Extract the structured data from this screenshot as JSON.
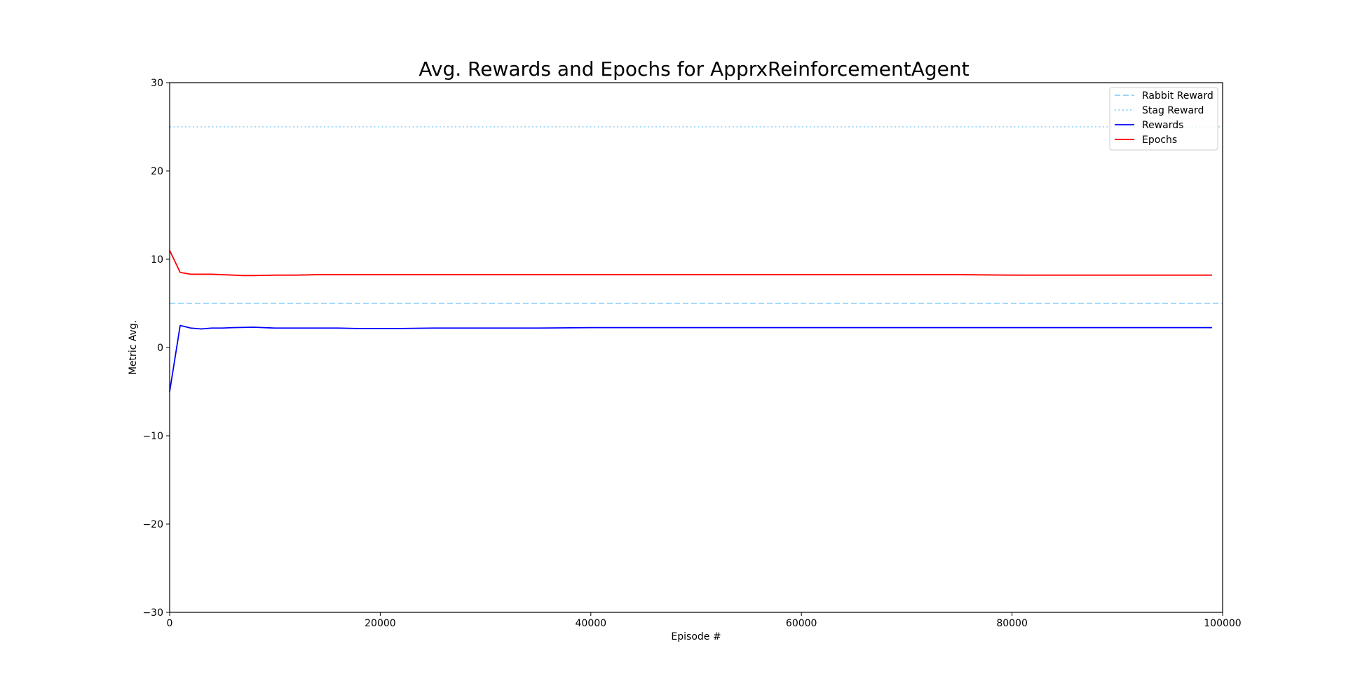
{
  "chart_data": {
    "type": "line",
    "title": "Avg. Rewards and Epochs for ApprxReinforcementAgent",
    "xlabel": "Episode #",
    "ylabel": "Metric Avg.",
    "xlim": [
      0,
      100000
    ],
    "ylim": [
      -30,
      30
    ],
    "xticks": [
      0,
      20000,
      40000,
      60000,
      80000,
      100000
    ],
    "xtick_labels": [
      "0",
      "20000",
      "40000",
      "60000",
      "80000",
      "100000"
    ],
    "yticks": [
      -30,
      -20,
      -10,
      0,
      10,
      20,
      30
    ],
    "ytick_labels": [
      "−30",
      "−20",
      "−10",
      "0",
      "10",
      "20",
      "30"
    ],
    "grid": false,
    "legend": {
      "placement": "top-right",
      "entries": [
        {
          "label": "Rabbit Reward",
          "color": "#87cefa",
          "style": "dashed"
        },
        {
          "label": "Stag Reward",
          "color": "#87cefa",
          "style": "dotted"
        },
        {
          "label": "Rewards",
          "color": "#0000ff",
          "style": "solid"
        },
        {
          "label": "Epochs",
          "color": "#ff0000",
          "style": "solid"
        }
      ]
    },
    "hlines": [
      {
        "name": "Rabbit Reward",
        "y": 5,
        "color": "#87cefa",
        "style": "dashed"
      },
      {
        "name": "Stag Reward",
        "y": 25,
        "color": "#87cefa",
        "style": "dotted"
      }
    ],
    "series": [
      {
        "name": "Rewards",
        "color": "#0000ff",
        "x": [
          0,
          1000,
          2000,
          3000,
          4000,
          5000,
          6000,
          8000,
          10000,
          12000,
          14000,
          16000,
          18000,
          20000,
          22000,
          25000,
          30000,
          35000,
          40000,
          45000,
          50000,
          55000,
          60000,
          65000,
          70000,
          75000,
          80000,
          85000,
          90000,
          95000,
          99000
        ],
        "values": [
          -5.0,
          2.5,
          2.2,
          2.1,
          2.2,
          2.2,
          2.25,
          2.3,
          2.2,
          2.2,
          2.2,
          2.2,
          2.15,
          2.15,
          2.15,
          2.2,
          2.2,
          2.2,
          2.25,
          2.25,
          2.25,
          2.25,
          2.25,
          2.25,
          2.25,
          2.25,
          2.25,
          2.25,
          2.25,
          2.25,
          2.25
        ]
      },
      {
        "name": "Epochs",
        "color": "#ff0000",
        "x": [
          0,
          1000,
          2000,
          3000,
          4000,
          5000,
          6000,
          7000,
          8000,
          10000,
          12000,
          14000,
          16000,
          20000,
          25000,
          30000,
          35000,
          40000,
          45000,
          50000,
          55000,
          60000,
          65000,
          70000,
          75000,
          80000,
          85000,
          90000,
          95000,
          99000
        ],
        "values": [
          11.0,
          8.5,
          8.3,
          8.3,
          8.3,
          8.25,
          8.2,
          8.15,
          8.15,
          8.2,
          8.2,
          8.25,
          8.25,
          8.25,
          8.25,
          8.25,
          8.25,
          8.25,
          8.25,
          8.25,
          8.25,
          8.25,
          8.25,
          8.25,
          8.25,
          8.2,
          8.2,
          8.2,
          8.2,
          8.2
        ]
      }
    ]
  }
}
